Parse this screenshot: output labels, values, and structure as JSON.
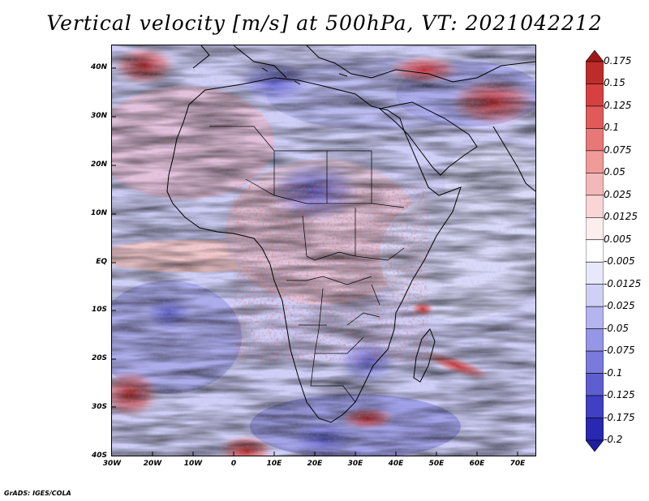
{
  "title": "Vertical velocity [m/s] at 500hPa, VT: 2021042212",
  "footer": "GrADS: IGES/COLA",
  "map": {
    "lon_range": [
      -30,
      75
    ],
    "lat_range": [
      -40,
      45
    ],
    "lat_ticks": [
      "40N",
      "30N",
      "20N",
      "10N",
      "EQ",
      "10S",
      "20S",
      "30S",
      "40S"
    ],
    "lon_ticks": [
      "30W",
      "20W",
      "10W",
      "0",
      "10E",
      "20E",
      "30E",
      "40E",
      "50E",
      "60E",
      "70E"
    ]
  },
  "colorbar": {
    "labels": [
      "0.175",
      "0.15",
      "0.125",
      "0.1",
      "0.075",
      "0.05",
      "0.025",
      "0.0125",
      "0.005",
      "-0.005",
      "-0.0125",
      "-0.025",
      "-0.05",
      "-0.075",
      "-0.1",
      "-0.125",
      "-0.175",
      "-0.2"
    ],
    "colors": [
      "#a01818",
      "#be2b2b",
      "#d64040",
      "#e05a5a",
      "#e87878",
      "#f09a9a",
      "#f5b8b8",
      "#fad5d5",
      "#fdeeee",
      "#ffffff",
      "#e8e8fb",
      "#d0d0f6",
      "#b4b4ef",
      "#9696e6",
      "#7a7adc",
      "#5e5ed0",
      "#4040c2",
      "#2828b0",
      "#1e1ea0"
    ]
  }
}
